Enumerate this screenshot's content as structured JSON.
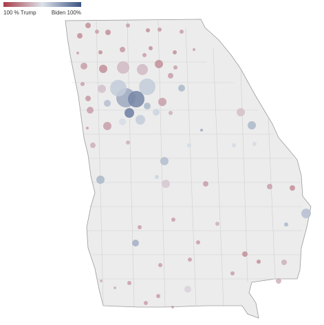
{
  "legend": {
    "left_label": "100 % Trump",
    "right_label": "Biden 100%",
    "colors": [
      "#a83a48",
      "#dde3ea",
      "#3b5280"
    ]
  },
  "map": {
    "type": "bubble-map",
    "region": "Georgia counties",
    "bubbles": [
      {
        "biden_pct": 25,
        "votes": 16000
      },
      {
        "biden_pct": 25,
        "votes": 16000
      },
      {
        "biden_pct": 30,
        "votes": 9000
      },
      {
        "biden_pct": 25,
        "votes": 16000
      },
      {
        "biden_pct": 30,
        "votes": 9000
      },
      {
        "biden_pct": 25,
        "votes": 9000
      },
      {
        "biden_pct": 28,
        "votes": 9000
      },
      {
        "biden_pct": 30,
        "votes": 9000
      },
      {
        "biden_pct": 30,
        "votes": 4000
      },
      {
        "biden_pct": 25,
        "votes": 9000
      },
      {
        "biden_pct": 28,
        "votes": 16000
      },
      {
        "biden_pct": 30,
        "votes": 9000
      },
      {
        "biden_pct": 25,
        "votes": 9000
      },
      {
        "biden_pct": 25,
        "votes": 9000
      },
      {
        "biden_pct": 30,
        "votes": 4000
      },
      {
        "biden_pct": 30,
        "votes": 25000
      },
      {
        "biden_pct": 25,
        "votes": 36000
      },
      {
        "biden_pct": 38,
        "votes": 81000
      },
      {
        "biden_pct": 38,
        "votes": 64000
      },
      {
        "biden_pct": 25,
        "votes": 36000
      },
      {
        "biden_pct": 30,
        "votes": 9000
      },
      {
        "biden_pct": 30,
        "votes": 9000
      },
      {
        "biden_pct": 40,
        "votes": 36000
      },
      {
        "biden_pct": 58,
        "votes": 144000
      },
      {
        "biden_pct": 58,
        "votes": 144000
      },
      {
        "biden_pct": 30,
        "votes": 16000
      },
      {
        "biden_pct": 65,
        "votes": 25000
      },
      {
        "biden_pct": 70,
        "votes": 196000
      },
      {
        "biden_pct": 82,
        "votes": 144000
      },
      {
        "biden_pct": 28,
        "votes": 16000
      },
      {
        "biden_pct": 62,
        "votes": 25000
      },
      {
        "biden_pct": 65,
        "votes": 25000
      },
      {
        "biden_pct": 30,
        "votes": 36000
      },
      {
        "biden_pct": 30,
        "votes": 25000
      },
      {
        "biden_pct": 85,
        "votes": 49000
      },
      {
        "biden_pct": 55,
        "votes": 25000
      },
      {
        "biden_pct": 35,
        "votes": 9000
      },
      {
        "biden_pct": 30,
        "votes": 36000
      },
      {
        "biden_pct": 52,
        "votes": 25000
      },
      {
        "biden_pct": 58,
        "votes": 49000
      },
      {
        "biden_pct": 30,
        "votes": 4000
      },
      {
        "biden_pct": 65,
        "votes": 36000
      },
      {
        "biden_pct": 40,
        "votes": 36000
      },
      {
        "biden_pct": 70,
        "votes": 4000
      },
      {
        "biden_pct": 35,
        "votes": 16000
      },
      {
        "biden_pct": 35,
        "votes": 9000
      },
      {
        "biden_pct": 63,
        "votes": 36000
      },
      {
        "biden_pct": 65,
        "votes": 36000
      },
      {
        "biden_pct": 42,
        "votes": 36000
      },
      {
        "biden_pct": 55,
        "votes": 9000
      },
      {
        "biden_pct": 30,
        "votes": 16000
      },
      {
        "biden_pct": 53,
        "votes": 9000
      },
      {
        "biden_pct": 53,
        "votes": 9000
      },
      {
        "biden_pct": 53,
        "votes": 9000
      },
      {
        "biden_pct": 30,
        "votes": 16000
      },
      {
        "biden_pct": 25,
        "votes": 16000
      },
      {
        "biden_pct": 62,
        "votes": 49000
      },
      {
        "biden_pct": 65,
        "votes": 9000
      },
      {
        "biden_pct": 68,
        "votes": 25000
      },
      {
        "biden_pct": 30,
        "votes": 9000
      },
      {
        "biden_pct": 30,
        "votes": 9000
      },
      {
        "biden_pct": 25,
        "votes": 16000
      },
      {
        "biden_pct": 25,
        "votes": 9000
      },
      {
        "biden_pct": 35,
        "votes": 16000
      },
      {
        "biden_pct": 45,
        "votes": 25000
      },
      {
        "biden_pct": 35,
        "votes": 16000
      },
      {
        "biden_pct": 30,
        "votes": 9000
      },
      {
        "biden_pct": 30,
        "votes": 9000
      },
      {
        "biden_pct": 30,
        "votes": 9000
      },
      {
        "biden_pct": 35,
        "votes": 9000
      },
      {
        "biden_pct": 30,
        "votes": 9000
      },
      {
        "biden_pct": 30,
        "votes": 9000
      },
      {
        "biden_pct": 30,
        "votes": 9000
      },
      {
        "biden_pct": 30,
        "votes": 4000
      },
      {
        "biden_pct": 35,
        "votes": 4000
      },
      {
        "biden_pct": 30,
        "votes": 9000
      },
      {
        "biden_pct": 35,
        "votes": 4000
      }
    ]
  }
}
